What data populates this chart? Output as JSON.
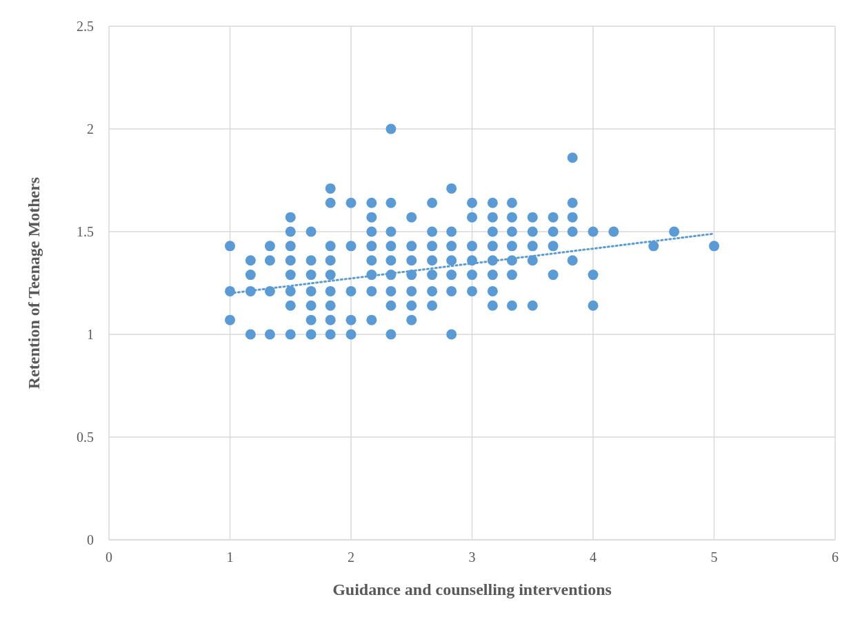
{
  "chart_data": {
    "type": "scatter",
    "xlabel": "Guidance and counselling interventions",
    "ylabel": "Retention of Teenage Mothers",
    "xlim": [
      0,
      6
    ],
    "xticks": [
      0,
      1,
      2,
      3,
      4,
      5,
      6
    ],
    "ylim": [
      0,
      2.5
    ],
    "yticks": [
      0,
      0.5,
      1,
      1.5,
      2,
      2.5
    ],
    "grid": true,
    "legend": false,
    "series": [
      {
        "color": "#5b9bd5",
        "marker": "circle",
        "x": [
          1,
          1,
          1,
          1.17,
          1.17,
          1.17,
          1.17,
          1.33,
          1.33,
          1.33,
          1.33,
          1.5,
          1.5,
          1.5,
          1.5,
          1.5,
          1.5,
          1.5,
          1.5,
          1.67,
          1.67,
          1.67,
          1.67,
          1.67,
          1.67,
          1.67,
          1.83,
          1.83,
          1.83,
          1.83,
          1.83,
          1.83,
          1.83,
          1.83,
          1.83,
          2,
          2,
          2,
          2,
          2,
          2.17,
          2.17,
          2.17,
          2.17,
          2.17,
          2.17,
          2.17,
          2.17,
          2.33,
          2.33,
          2.33,
          2.33,
          2.33,
          2.33,
          2.33,
          2.33,
          2.33,
          2.5,
          2.5,
          2.5,
          2.5,
          2.5,
          2.5,
          2.5,
          2.67,
          2.67,
          2.67,
          2.67,
          2.67,
          2.67,
          2.67,
          2.83,
          2.83,
          2.83,
          2.83,
          2.83,
          2.83,
          2.83,
          3,
          3,
          3,
          3,
          3,
          3,
          3.17,
          3.17,
          3.17,
          3.17,
          3.17,
          3.17,
          3.17,
          3.17,
          3.33,
          3.33,
          3.33,
          3.33,
          3.33,
          3.33,
          3.33,
          3.5,
          3.5,
          3.5,
          3.5,
          3.5,
          3.67,
          3.67,
          3.67,
          3.67,
          3.83,
          3.83,
          3.83,
          3.83,
          3.83,
          4,
          4,
          4,
          4.17,
          4.5,
          4.67,
          5
        ],
        "values": [
          1.43,
          1.21,
          1.07,
          1.36,
          1.29,
          1.21,
          1.0,
          1.43,
          1.36,
          1.21,
          1.0,
          1.57,
          1.5,
          1.43,
          1.36,
          1.29,
          1.21,
          1.14,
          1.0,
          1.5,
          1.36,
          1.29,
          1.21,
          1.14,
          1.07,
          1.0,
          1.71,
          1.64,
          1.43,
          1.36,
          1.29,
          1.21,
          1.14,
          1.07,
          1.0,
          1.64,
          1.43,
          1.21,
          1.07,
          1.0,
          1.64,
          1.57,
          1.5,
          1.43,
          1.36,
          1.29,
          1.21,
          1.07,
          2.0,
          1.64,
          1.5,
          1.43,
          1.36,
          1.29,
          1.21,
          1.14,
          1.0,
          1.57,
          1.43,
          1.36,
          1.29,
          1.21,
          1.14,
          1.07,
          1.64,
          1.5,
          1.43,
          1.36,
          1.29,
          1.21,
          1.14,
          1.71,
          1.5,
          1.43,
          1.36,
          1.29,
          1.21,
          1.0,
          1.64,
          1.57,
          1.43,
          1.36,
          1.29,
          1.21,
          1.64,
          1.57,
          1.5,
          1.43,
          1.36,
          1.29,
          1.21,
          1.14,
          1.64,
          1.57,
          1.5,
          1.43,
          1.36,
          1.29,
          1.14,
          1.57,
          1.5,
          1.43,
          1.36,
          1.14,
          1.57,
          1.5,
          1.43,
          1.29,
          1.86,
          1.64,
          1.57,
          1.5,
          1.36,
          1.5,
          1.29,
          1.14,
          1.5,
          1.43,
          1.5,
          1.43
        ]
      },
      {
        "type": "line",
        "color": "#5b9bd5",
        "line_style": "dotted",
        "marker": "none",
        "x": [
          1,
          5
        ],
        "values": [
          1.2,
          1.49
        ]
      }
    ]
  }
}
